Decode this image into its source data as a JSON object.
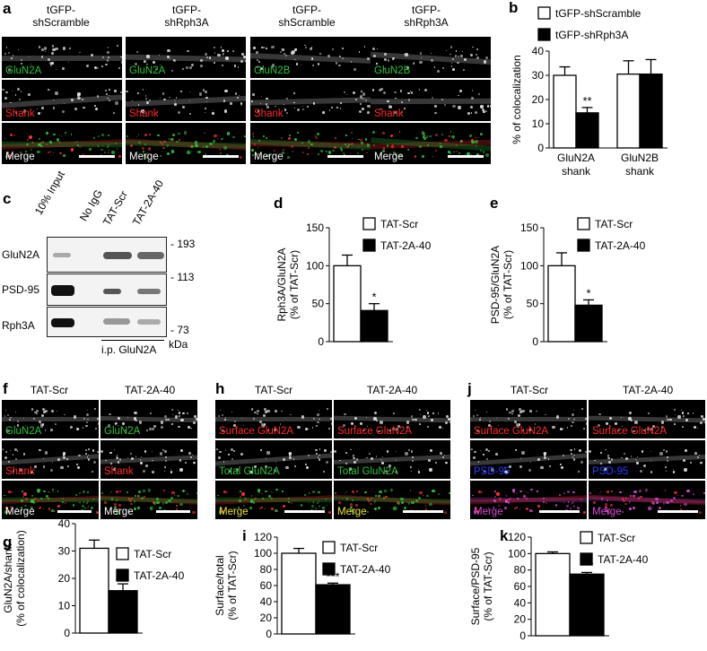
{
  "panels": {
    "a": {
      "label": "a",
      "cols": [
        "tGFP-\nshScramble",
        "tGFP-\nshRph3A",
        "tGFP-\nshScramble",
        "tGFP-\nshRph3A"
      ],
      "rows": [
        [
          "GluN2A",
          "GluN2A",
          "GluN2B",
          "GluN2B"
        ],
        [
          "Shank",
          "Shank",
          "Shank",
          "Shank"
        ],
        [
          "Merge",
          "Merge",
          "Merge",
          "Merge"
        ]
      ]
    },
    "c": {
      "label": "c",
      "lanes": [
        "10% Input",
        "No IgG",
        "TAT-Scr",
        "TAT-2A-40"
      ],
      "blots": [
        "GluN2A",
        "PSD-95",
        "Rph3A"
      ],
      "mw": [
        "- 193",
        "- 113",
        "- 73"
      ],
      "kda": "kDa",
      "ip": "i.p. GluN2A"
    },
    "f": {
      "label": "f",
      "cols": [
        "TAT-Scr",
        "TAT-2A-40"
      ],
      "rows": [
        [
          "GluN2A",
          "GluN2A"
        ],
        [
          "Shank",
          "Shank"
        ],
        [
          "Merge",
          "Merge"
        ]
      ]
    },
    "h": {
      "label": "h",
      "cols": [
        "TAT-Scr",
        "TAT-2A-40"
      ],
      "rows": [
        [
          "Surface GluN2A",
          "Surface GluN2A"
        ],
        [
          "Total GluN2A",
          "Total GluN2A"
        ],
        [
          "Merge",
          "Merge"
        ]
      ]
    },
    "j": {
      "label": "j",
      "cols": [
        "TAT-Scr",
        "TAT-2A-40"
      ],
      "rows": [
        [
          "Surface GluN2A",
          "Surface GluN2A"
        ],
        [
          "PSD-95",
          "PSD-95"
        ],
        [
          "Merge",
          "Merge"
        ]
      ]
    }
  },
  "chart_data": [
    {
      "id": "b",
      "type": "bar",
      "label": "b",
      "ylabel": "% of colocalization",
      "ylim": [
        0,
        40
      ],
      "ticks": [
        0,
        10,
        20,
        30,
        40
      ],
      "categories": [
        "GluN2A\nshank",
        "GluN2B\nshank"
      ],
      "series": [
        {
          "name": "tGFP-shScramble",
          "fill": "#ffffff",
          "values": [
            30,
            30.5
          ],
          "errors": [
            3.5,
            5.5
          ]
        },
        {
          "name": "tGFP-shRph3A",
          "fill": "#000000",
          "values": [
            14.5,
            30.5
          ],
          "errors": [
            2.2,
            6
          ]
        }
      ],
      "annotations": [
        {
          "category": 0,
          "series": 1,
          "text": "**"
        }
      ]
    },
    {
      "id": "d",
      "type": "bar",
      "label": "d",
      "ylabel": "Rph3A/GluN2A\n(% of TAT-Scr)",
      "ylim": [
        0,
        150
      ],
      "ticks": [
        0,
        50,
        100,
        150
      ],
      "categories": [
        ""
      ],
      "series": [
        {
          "name": "TAT-Scr",
          "fill": "#ffffff",
          "values": [
            100
          ],
          "errors": [
            14
          ]
        },
        {
          "name": "TAT-2A-40",
          "fill": "#000000",
          "values": [
            41
          ],
          "errors": [
            9
          ]
        }
      ],
      "annotations": [
        {
          "category": 0,
          "series": 1,
          "text": "*"
        }
      ]
    },
    {
      "id": "e",
      "type": "bar",
      "label": "e",
      "ylabel": "PSD-95/GluN2A\n(% of TAT-Scr)",
      "ylim": [
        0,
        150
      ],
      "ticks": [
        0,
        50,
        100,
        150
      ],
      "categories": [
        ""
      ],
      "series": [
        {
          "name": "TAT-Scr",
          "fill": "#ffffff",
          "values": [
            100
          ],
          "errors": [
            17
          ]
        },
        {
          "name": "TAT-2A-40",
          "fill": "#000000",
          "values": [
            48
          ],
          "errors": [
            7
          ]
        }
      ],
      "annotations": [
        {
          "category": 0,
          "series": 1,
          "text": "*"
        }
      ]
    },
    {
      "id": "g",
      "type": "bar",
      "label": "g",
      "ylabel": "GluN2A/shank\n(% of colocalization)",
      "ylim": [
        0,
        40
      ],
      "ticks": [
        0,
        10,
        20,
        30,
        40
      ],
      "categories": [
        ""
      ],
      "series": [
        {
          "name": "TAT-Scr",
          "fill": "#ffffff",
          "values": [
            31
          ],
          "errors": [
            3
          ]
        },
        {
          "name": "TAT-2A-40",
          "fill": "#000000",
          "values": [
            15.5
          ],
          "errors": [
            2.5
          ]
        }
      ],
      "annotations": [
        {
          "category": 0,
          "series": 1,
          "text": "**"
        }
      ]
    },
    {
      "id": "i",
      "type": "bar",
      "label": "i",
      "ylabel": "Surface/total\n(% of TAT-Scr)",
      "ylim": [
        0,
        120
      ],
      "ticks": [
        0,
        20,
        40,
        60,
        80,
        100,
        120
      ],
      "categories": [
        ""
      ],
      "series": [
        {
          "name": "TAT-Scr",
          "fill": "#ffffff",
          "values": [
            100
          ],
          "errors": [
            6
          ]
        },
        {
          "name": "TAT-2A-40",
          "fill": "#000000",
          "values": [
            61
          ],
          "errors": [
            2
          ]
        }
      ],
      "annotations": [
        {
          "category": 0,
          "series": 1,
          "text": "***"
        }
      ]
    },
    {
      "id": "k",
      "type": "bar",
      "label": "k",
      "ylabel": "Surface/PSD-95\n(% of TAT-Scr)",
      "ylim": [
        0,
        120
      ],
      "ticks": [
        0,
        20,
        40,
        60,
        80,
        100,
        120
      ],
      "categories": [
        ""
      ],
      "series": [
        {
          "name": "TAT-Scr",
          "fill": "#ffffff",
          "values": [
            100
          ],
          "errors": [
            2
          ]
        },
        {
          "name": "TAT-2A-40",
          "fill": "#000000",
          "values": [
            75
          ],
          "errors": [
            2
          ]
        }
      ],
      "annotations": [
        {
          "category": 0,
          "series": 1,
          "text": "***"
        }
      ]
    }
  ]
}
